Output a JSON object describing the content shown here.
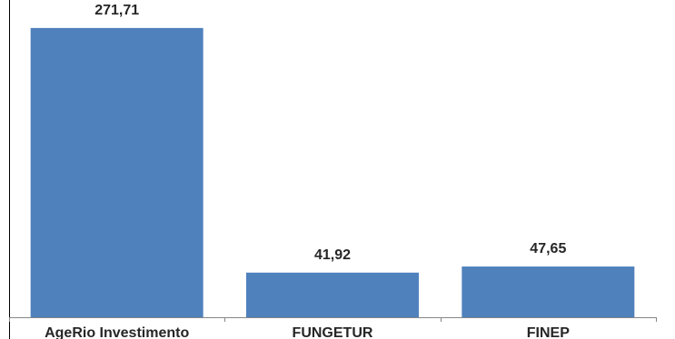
{
  "chart_data": {
    "type": "bar",
    "categories": [
      "AgeRio Investimento",
      "FUNGETUR",
      "FINEP"
    ],
    "values": [
      271.71,
      41.92,
      47.65
    ],
    "value_labels": [
      "271,71",
      "41,92",
      "47,65"
    ],
    "ylim": [
      0,
      298
    ],
    "grid": false,
    "legend": "none",
    "title": "",
    "xlabel": "",
    "ylabel": ""
  },
  "colors": {
    "bar": "#4f81bd",
    "axis": "#868686",
    "border": "#000000"
  }
}
